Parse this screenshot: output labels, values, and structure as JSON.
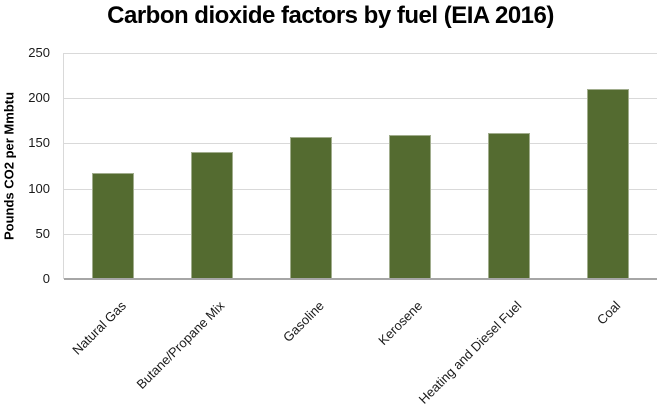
{
  "page": {
    "background": "#ffffff"
  },
  "chart_data": {
    "type": "bar",
    "title": "Carbon dioxide factors by fuel (EIA 2016)",
    "categories": [
      "Natural Gas",
      "Butane/Propane Mix",
      "Gasoline",
      "Kerosene",
      "Heating and Diesel Fuel",
      "Coal"
    ],
    "values": [
      117,
      141,
      157,
      159,
      161,
      210
    ],
    "xlabel": "",
    "ylabel": "Pounds CO2 per Mmbtu",
    "ylim": [
      0,
      250
    ],
    "ytick_step": 50,
    "ytick_labels": [
      "0",
      "50",
      "100",
      "150",
      "200",
      "250"
    ],
    "grid": true,
    "legend": "none",
    "colors": {
      "bar_fill": "#546b30",
      "bar_edge_highlight": "rgba(255,255,255,0.45)",
      "gridline": "#d9d9d9",
      "axis_line": "#a6a6a6",
      "tick_text": "#1a1a1a",
      "title_text": "#000000"
    }
  }
}
